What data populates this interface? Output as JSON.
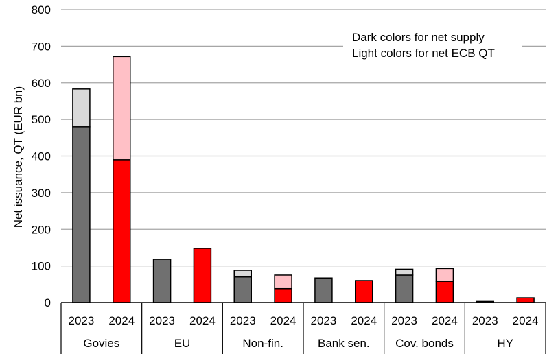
{
  "chart_data": {
    "type": "bar",
    "stacked": true,
    "ylabel": "Net issuance, QT (EUR bn)",
    "ylim": [
      0,
      800
    ],
    "yticks": [
      0,
      100,
      200,
      300,
      400,
      500,
      600,
      700,
      800
    ],
    "grid": true,
    "groups": [
      "Govies",
      "EU",
      "Non-fin.",
      "Bank sen.",
      "Cov. bonds",
      "HY"
    ],
    "years": [
      "2023",
      "2024"
    ],
    "annotation": [
      "Dark colors for net supply",
      "Light colors for net ECB QT"
    ],
    "series": [
      {
        "name": "net supply",
        "values": [
          [
            480,
            390
          ],
          [
            118,
            148
          ],
          [
            70,
            38
          ],
          [
            67,
            60
          ],
          [
            75,
            58
          ],
          [
            3,
            13
          ]
        ]
      },
      {
        "name": "net ECB QT",
        "values": [
          [
            103,
            282
          ],
          [
            0,
            0
          ],
          [
            18,
            37
          ],
          [
            0,
            0
          ],
          [
            16,
            35
          ],
          [
            0,
            0
          ]
        ]
      }
    ],
    "colors": {
      "2023": {
        "supply": "#707070",
        "qt": "#d9d9d9"
      },
      "2024": {
        "supply": "#ff0000",
        "qt": "#ffc0c6"
      },
      "grid": "#a6a6a6"
    }
  }
}
